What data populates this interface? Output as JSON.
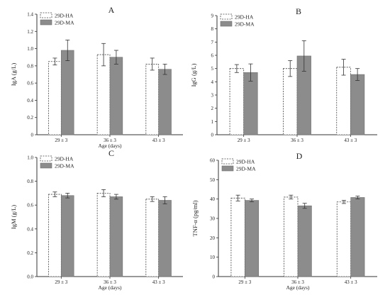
{
  "figure": {
    "panels": [
      "A",
      "B",
      "C",
      "D"
    ]
  },
  "chart_data": [
    {
      "type": "bar",
      "panel": "A",
      "categories": [
        "29 ± 3",
        "36 ± 3",
        "43 ± 3"
      ],
      "series": [
        {
          "name": "29D-HA",
          "values": [
            0.85,
            0.93,
            0.82
          ],
          "errors": [
            0.04,
            0.13,
            0.07
          ],
          "style": "dashed-outline"
        },
        {
          "name": "29D-MA",
          "values": [
            0.98,
            0.9,
            0.76
          ],
          "errors": [
            0.12,
            0.08,
            0.06
          ],
          "style": "gray-fill"
        }
      ],
      "ylabel": "IgA (g/L)",
      "xlabel": "",
      "ylim": [
        0,
        1.4
      ],
      "yticks": [
        0,
        0.2,
        0.4,
        0.6,
        0.8,
        1.0,
        1.2,
        1.4
      ],
      "ytick_labels": [
        "0",
        "0.2",
        "0.4",
        "0.6",
        "0.8",
        "1.0",
        "1.2",
        "1.4"
      ],
      "legend": "top-left",
      "grid": false
    },
    {
      "type": "bar",
      "panel": "B",
      "categories": [
        "29 ± 3",
        "36 ± 3",
        "43 ± 3"
      ],
      "series": [
        {
          "name": "29D-HA",
          "values": [
            5.0,
            5.0,
            5.1
          ],
          "errors": [
            0.3,
            0.6,
            0.6
          ],
          "style": "dashed-outline"
        },
        {
          "name": "29D-MA",
          "values": [
            4.7,
            5.95,
            4.55
          ],
          "errors": [
            0.65,
            1.15,
            0.45
          ],
          "style": "gray-fill"
        }
      ],
      "ylabel": "IgG (g/L)",
      "xlabel": "",
      "ylim": [
        0,
        9
      ],
      "yticks": [
        0,
        1,
        2,
        3,
        4,
        5,
        6,
        7,
        8,
        9
      ],
      "ytick_labels": [
        "0",
        "1",
        "2",
        "3",
        "4",
        "5",
        "6",
        "7",
        "8",
        "9"
      ],
      "legend": "top-left",
      "grid": false
    },
    {
      "type": "bar",
      "panel": "C",
      "categories": [
        "29 ± 3",
        "36 ± 3",
        "43 ± 3"
      ],
      "series": [
        {
          "name": "29D-HA",
          "values": [
            0.69,
            0.7,
            0.65
          ],
          "errors": [
            0.02,
            0.03,
            0.02
          ],
          "style": "dashed-outline"
        },
        {
          "name": "29D-MA",
          "values": [
            0.68,
            0.67,
            0.64
          ],
          "errors": [
            0.02,
            0.02,
            0.03
          ],
          "style": "gray-fill"
        }
      ],
      "ylabel": "IgM (g/L)",
      "xlabel": "Age (days)",
      "ylim": [
        0,
        1.0
      ],
      "yticks": [
        0,
        0.2,
        0.4,
        0.6,
        0.8,
        1.0
      ],
      "ytick_labels": [
        "0.0",
        "0.2",
        "0.4",
        "0.6",
        "0.8",
        "1.0"
      ],
      "legend": "top-left",
      "grid": false
    },
    {
      "type": "bar",
      "panel": "D",
      "categories": [
        "29 ± 3",
        "36 ± 3",
        "43 ± 3"
      ],
      "series": [
        {
          "name": "29D-HA",
          "values": [
            40.5,
            41.0,
            38.5
          ],
          "errors": [
            1.5,
            1.0,
            0.8
          ],
          "style": "dashed-outline"
        },
        {
          "name": "29D-MA",
          "values": [
            39.3,
            36.5,
            40.8
          ],
          "errors": [
            0.7,
            1.3,
            0.7
          ],
          "style": "gray-fill"
        }
      ],
      "ylabel": "TNF-α (pg/ml)",
      "xlabel": "Age (days)",
      "ylim": [
        0,
        60
      ],
      "yticks": [
        0,
        10,
        20,
        30,
        40,
        50,
        60
      ],
      "ytick_labels": [
        "0",
        "10",
        "20",
        "30",
        "40",
        "50",
        "60"
      ],
      "legend": "top-left",
      "grid": false
    }
  ],
  "shared": {
    "xlabel_top_row": "Age (days)"
  }
}
